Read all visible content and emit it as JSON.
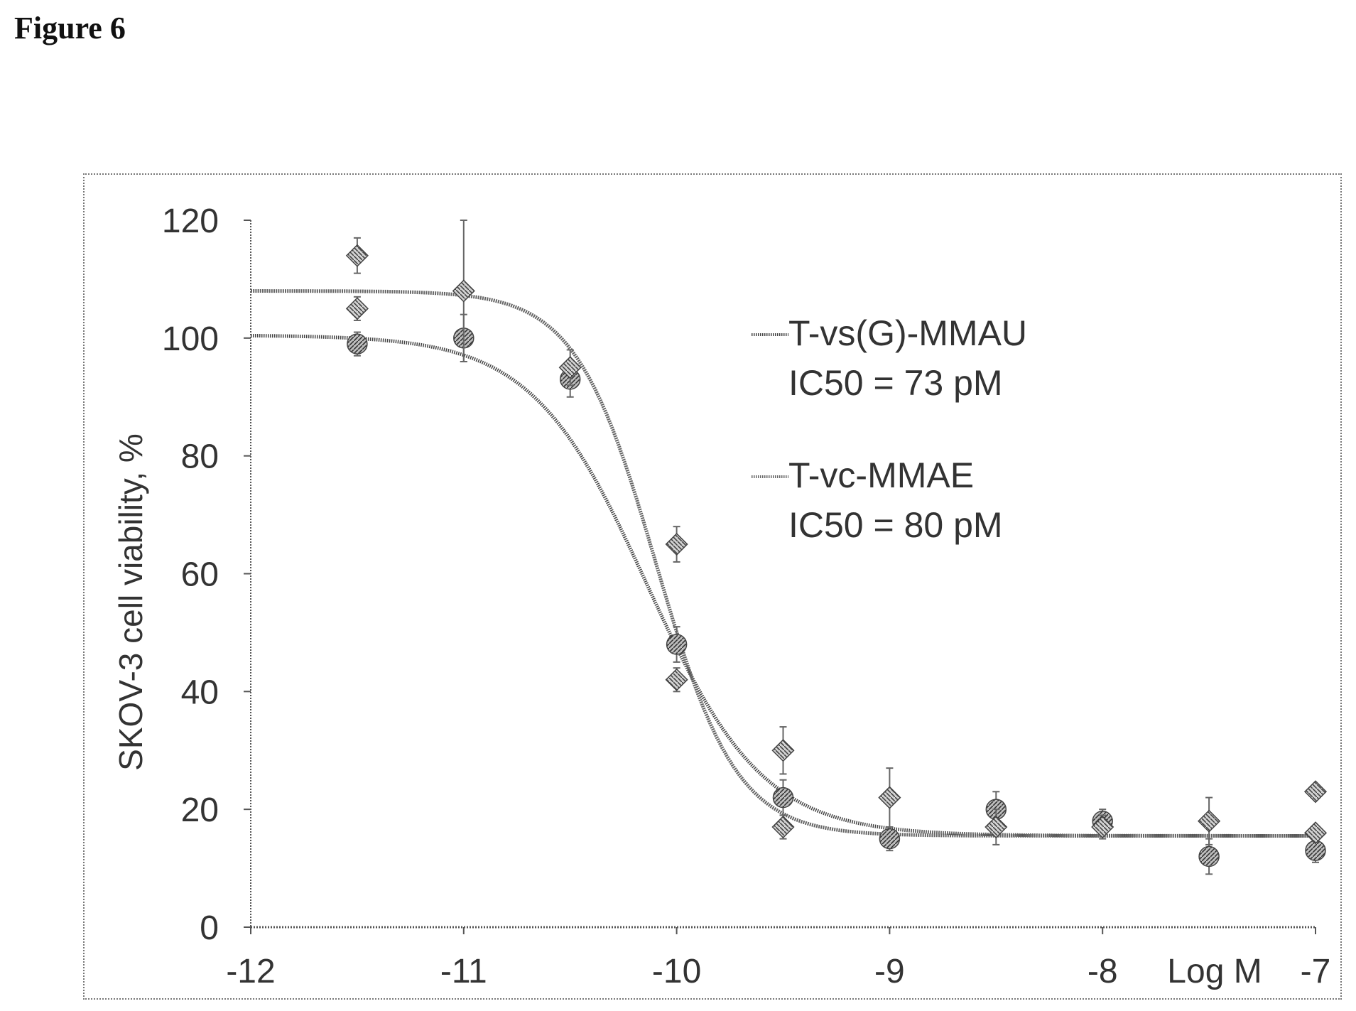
{
  "figure": {
    "title": "Figure 6"
  },
  "chart_data": {
    "type": "scatter",
    "title": "",
    "xlabel": "Log M",
    "ylabel": "SKOV-3 cell viability, %",
    "xlim": [
      -12,
      -7
    ],
    "ylim": [
      0,
      120
    ],
    "x_ticks": [
      "-12",
      "-11",
      "-10",
      "-9",
      "-8",
      "-7"
    ],
    "y_ticks": [
      "0",
      "20",
      "40",
      "60",
      "80",
      "100",
      "120"
    ],
    "grid": false,
    "legend_position": "top-right",
    "series": [
      {
        "name": "T-vs(G)-MMAU",
        "annotation": "IC50 = 73 pM",
        "color": "#444444",
        "fit": {
          "top": 100.5,
          "bottom": 15.5,
          "logIC50": -10.137,
          "hill": 1.6
        },
        "points": [
          {
            "x": -11.5,
            "y": 99,
            "err": 2
          },
          {
            "x": -11,
            "y": 100,
            "err": 4
          },
          {
            "x": -10.5,
            "y": 93,
            "err": 3
          },
          {
            "x": -10,
            "y": 48,
            "err": 3
          },
          {
            "x": -9.5,
            "y": 22,
            "err": 3
          },
          {
            "x": -9,
            "y": 15,
            "err": 2
          },
          {
            "x": -8.5,
            "y": 20,
            "err": 3
          },
          {
            "x": -8,
            "y": 18,
            "err": 2
          },
          {
            "x": -7.5,
            "y": 12,
            "err": 3
          },
          {
            "x": -7,
            "y": 13,
            "err": 2
          }
        ]
      },
      {
        "name": "T-vc-MMAE",
        "annotation": "IC50 = 80 pM",
        "color": "#666666",
        "fit": {
          "top": 108,
          "bottom": 15.5,
          "logIC50": -10.097,
          "hill": 2.3
        },
        "points": [
          {
            "x": -11.5,
            "y": 114,
            "err": 3
          },
          {
            "x": -11.5,
            "y": 105,
            "err": 2
          },
          {
            "x": -11,
            "y": 108,
            "err": 12
          },
          {
            "x": -10.5,
            "y": 95,
            "err": 3
          },
          {
            "x": -10,
            "y": 65,
            "err": 3
          },
          {
            "x": -10,
            "y": 42,
            "err": 2
          },
          {
            "x": -9.5,
            "y": 30,
            "err": 4
          },
          {
            "x": -9.5,
            "y": 17,
            "err": 2
          },
          {
            "x": -9,
            "y": 22,
            "err": 5
          },
          {
            "x": -8.5,
            "y": 17,
            "err": 3
          },
          {
            "x": -8,
            "y": 17,
            "err": 2
          },
          {
            "x": -7.5,
            "y": 18,
            "err": 4
          },
          {
            "x": -7,
            "y": 23,
            "err": 1
          },
          {
            "x": -7,
            "y": 16,
            "err": 1
          }
        ]
      }
    ]
  }
}
